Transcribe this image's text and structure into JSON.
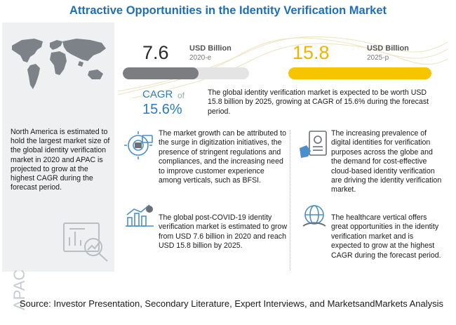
{
  "title": "Attractive Opportunities in the Identity Verification Market",
  "left_panel": {
    "text": "North America is estimated to hold the largest market size of the global identity verification market in 2020 and APAC is projected to grow at the highest CAGR during the forecast period.",
    "apac_label": "APAC",
    "map_icon": "world-map-icon",
    "chart_icon": "analysis-chart-icon"
  },
  "metrics": {
    "value_2020": "7.6",
    "unit_2020": "USD Billion",
    "year_2020": "2020-e",
    "value_2025": "15.8",
    "unit_2025": "USD Billion",
    "year_2025": "2025-p",
    "bar_2020_fraction": 0.6,
    "bar_2025_fraction": 1.0,
    "bar_2020_color": "#7b7d80",
    "bar_2025_color": "#f7c400"
  },
  "cagr": {
    "label": "CAGR",
    "of": "of",
    "value": "15.6%",
    "text": "The global identity verification market is expected to be worth USD 15.8 billion by 2025, growing at CAGR of 15.6% during the forecast period."
  },
  "blocks": [
    {
      "icon": "digitization-icon",
      "text": "The market growth can be attributed to the surge in digitization initiatives, the presence of stringent regulations and compliances, and the increasing need to improve customer experience among verticals, such as BFSI."
    },
    {
      "icon": "growth-chart-icon",
      "text": "The global post-COVID-19 identity verification market is estimated to grow from USD 7.6 billion in 2020 and reach USD 15.8 billion by 2025."
    },
    {
      "icon": "digital-identity-icon",
      "text": "The increasing prevalence of digital identities for verification purposes across the globe and the demand for cost-effective cloud-based identity verification are driving the identity verification market."
    },
    {
      "icon": "healthcare-globe-icon",
      "text": "The healthcare vertical offers great opportunities in the identity verification market and is expected to grow at the highest CAGR during the forecast period."
    }
  ],
  "source": "Source: Investor Presentation, Secondary Literature, Expert Interviews, and MarketsandMarkets Analysis",
  "colors": {
    "title": "#1f6fb5",
    "accent": "#2a7bc0",
    "highlight": "#f7c400"
  }
}
